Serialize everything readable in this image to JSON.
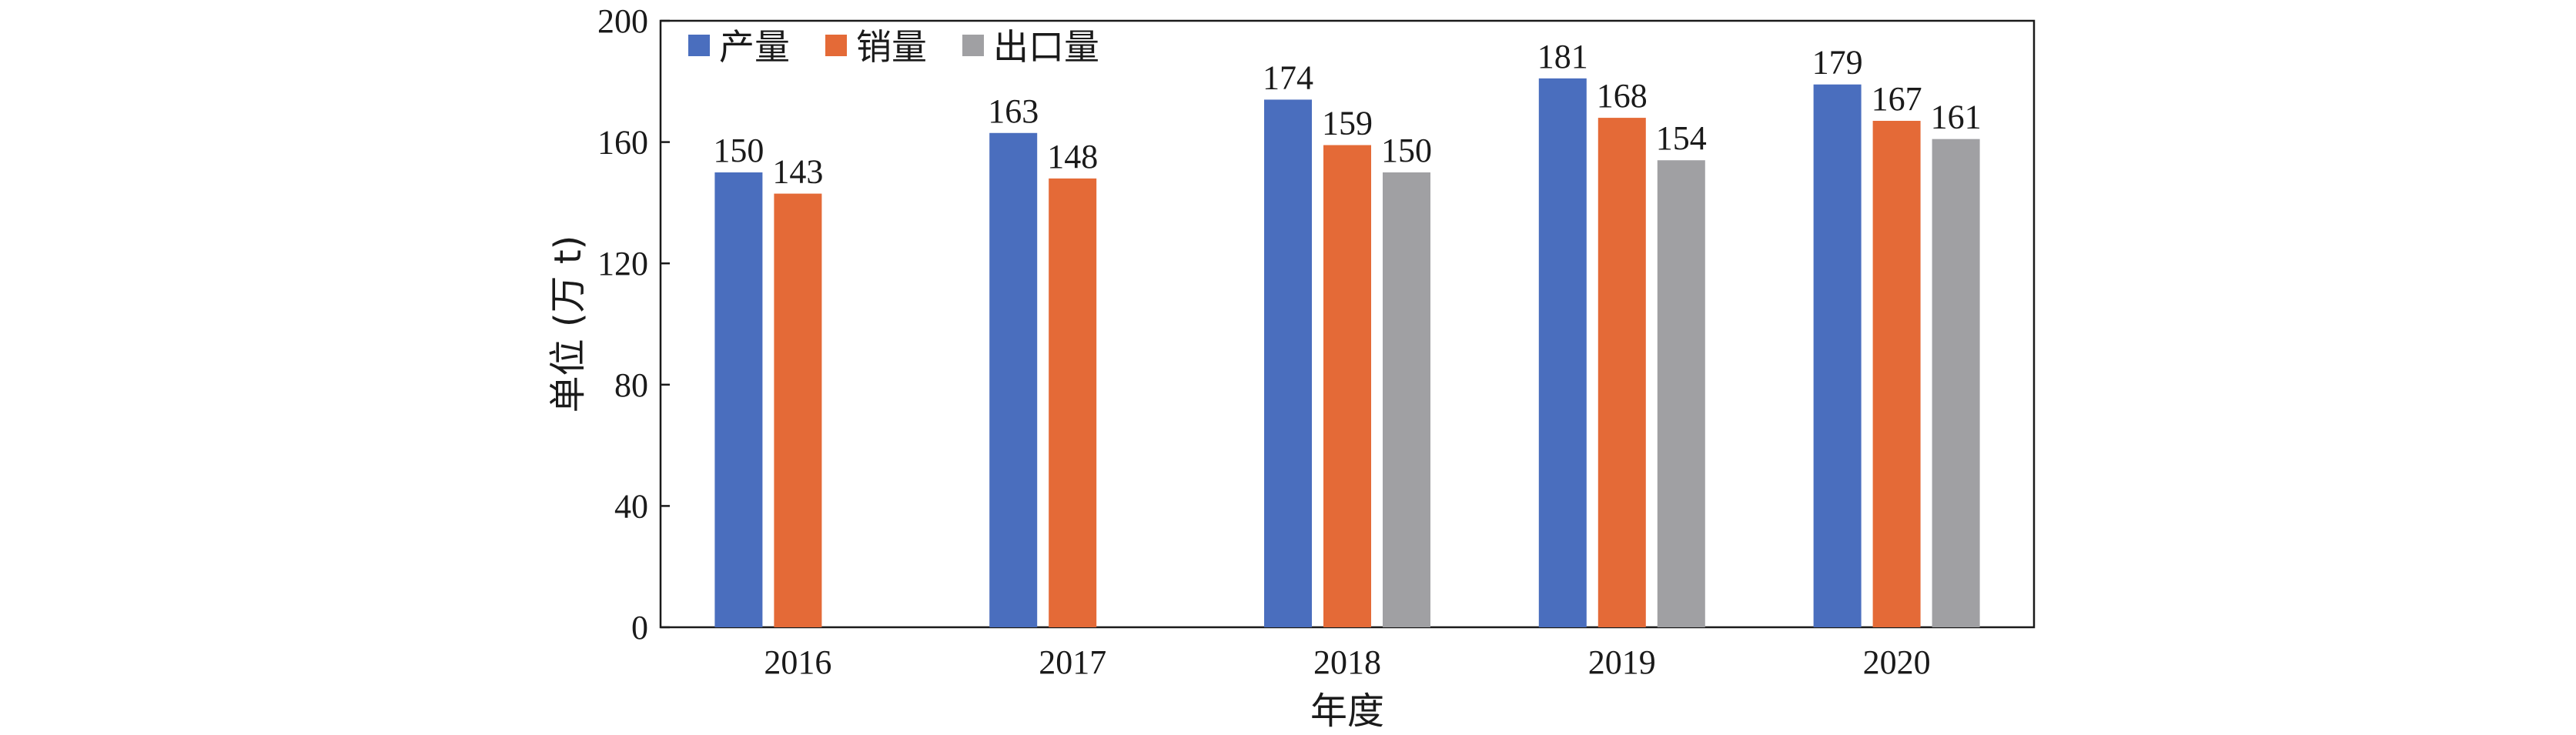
{
  "chart_data": {
    "type": "bar",
    "categories": [
      "2016",
      "2017",
      "2018",
      "2019",
      "2020"
    ],
    "series": [
      {
        "name": "产量",
        "color": "#4a6ebe",
        "values": [
          150,
          163,
          174,
          181,
          179
        ]
      },
      {
        "name": "销量",
        "color": "#e46a37",
        "values": [
          143,
          148,
          159,
          168,
          167
        ]
      },
      {
        "name": "出口量",
        "color": "#a0a0a3",
        "values": [
          null,
          null,
          150,
          154,
          161
        ]
      }
    ],
    "data_labels": [
      [
        "150",
        "163",
        "174",
        "181",
        "179"
      ],
      [
        "143",
        "148",
        "159",
        "168",
        "167"
      ],
      [
        "",
        "",
        "150",
        "154",
        "161"
      ]
    ],
    "xlabel": "年度",
    "ylabel": "单位 (万 t)",
    "ylim": [
      0,
      200
    ],
    "yticks": [
      0,
      40,
      80,
      120,
      160,
      200
    ],
    "legend_position": "top-left",
    "grid": false
  }
}
